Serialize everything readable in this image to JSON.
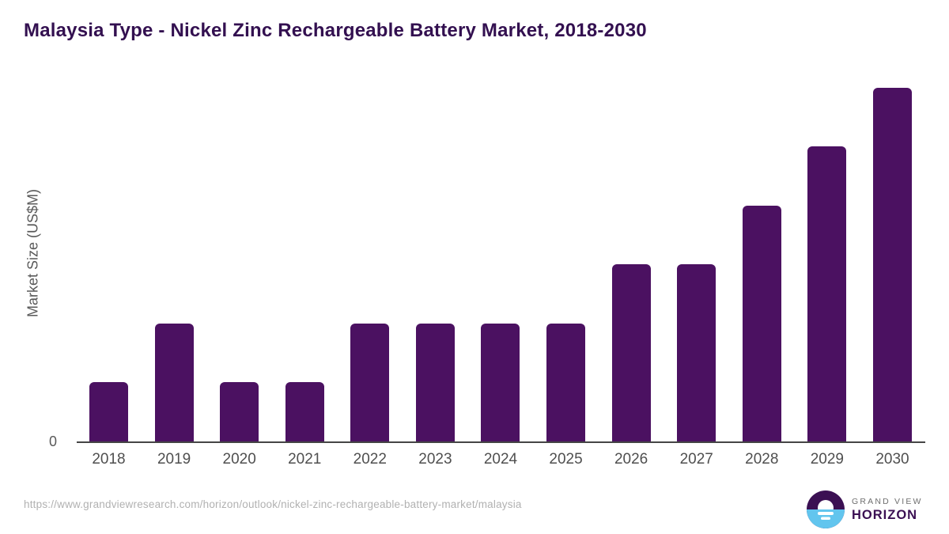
{
  "chart_data": {
    "type": "bar",
    "title": "Malaysia Type - Nickel Zinc Rechargeable Battery Market, 2018-2030",
    "categories": [
      "2018",
      "2019",
      "2020",
      "2021",
      "2022",
      "2023",
      "2024",
      "2025",
      "2026",
      "2027",
      "2028",
      "2029",
      "2030"
    ],
    "values": [
      1,
      2,
      1,
      1,
      2,
      2,
      2,
      2,
      3,
      3,
      4,
      5,
      6
    ],
    "xlabel": "",
    "ylabel": "Market Size (US$M)",
    "ylim": [
      0,
      6.17
    ],
    "y_tick_labels": [
      "0"
    ],
    "grid": "off",
    "legend": "none",
    "bar_color": "#4B1161"
  },
  "colors": {
    "title": "#331050",
    "bar": "#4B1161",
    "axis_line": "#454545",
    "tick_label": "#4f4f4f",
    "url_text": "#b1b1b1",
    "logo_purple": "#3B1053",
    "logo_blue": "#62C5EE"
  },
  "footer": {
    "source_url": "https://www.grandviewresearch.com/horizon/outlook/nickel-zinc-rechargeable-battery-market/malaysia",
    "logo": {
      "line1": "GRAND VIEW",
      "line2": "HORIZON"
    }
  }
}
